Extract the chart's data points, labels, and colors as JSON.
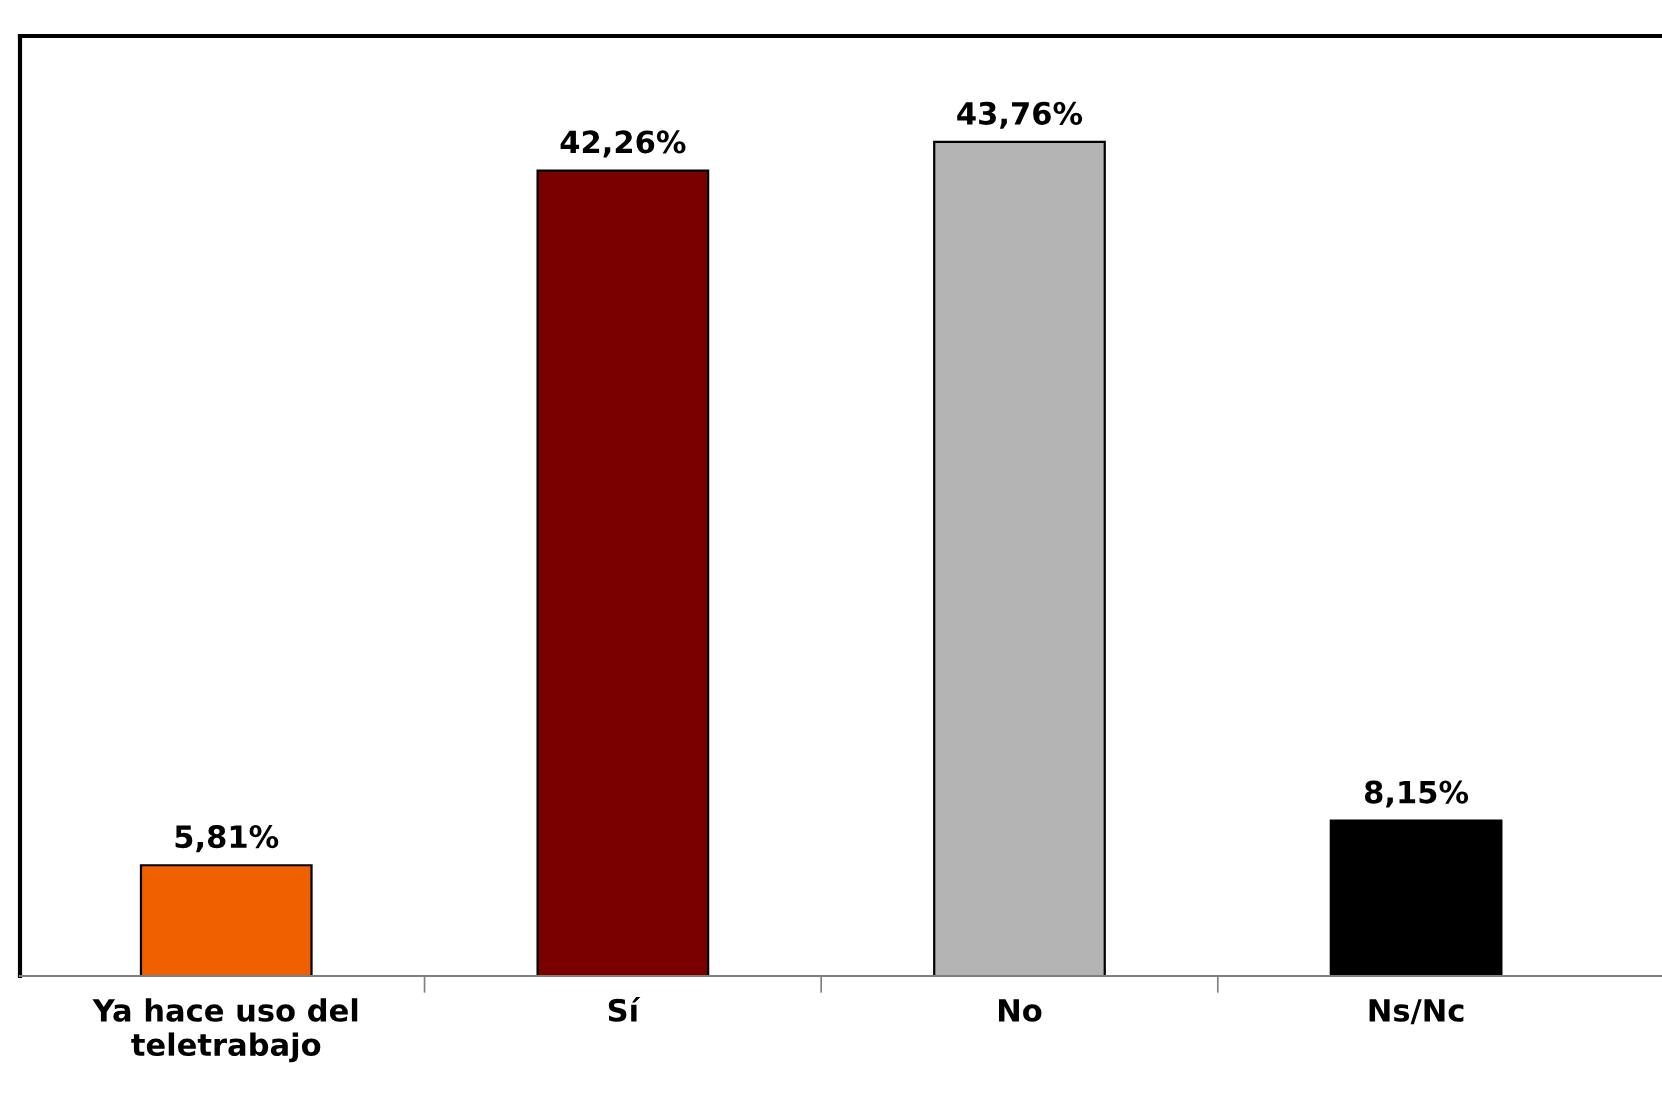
{
  "chart_data": {
    "type": "bar",
    "categories": [
      "Ya hace uso del\nteletrabajo",
      "Sí",
      "No",
      "Ns/Nc"
    ],
    "values": [
      5.81,
      42.26,
      43.76,
      8.15
    ],
    "colors": [
      "#f06000",
      "#7a0000",
      "#b4b4b4",
      "#000000"
    ],
    "value_labels": [
      "5,81%",
      "42,26%",
      "43,76%",
      "8,15%"
    ],
    "grid": false,
    "legend": false
  }
}
